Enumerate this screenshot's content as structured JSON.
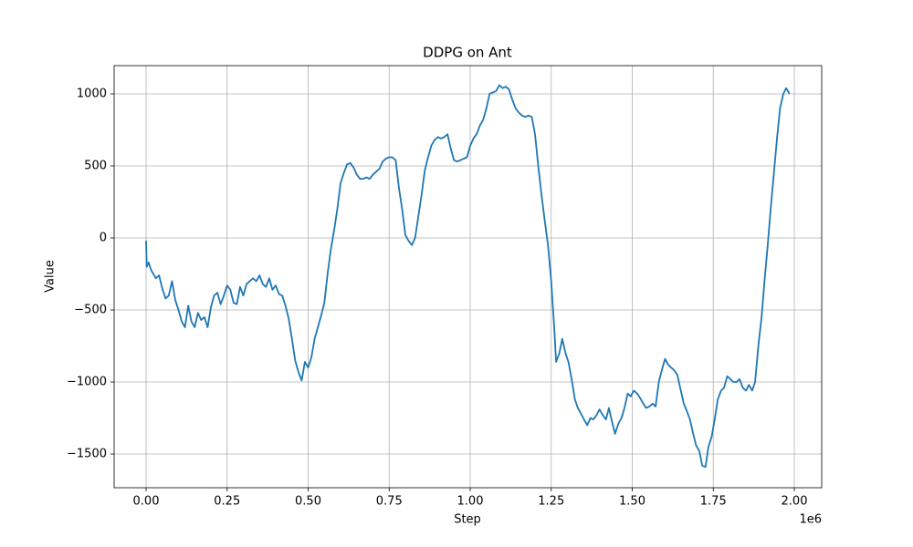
{
  "chart_data": {
    "type": "line",
    "title": "DDPG on Ant",
    "xlabel": "Step",
    "ylabel": "Value",
    "x_offset_label": "1e6",
    "xlim": [
      -0.0986,
      2.0845
    ],
    "ylim": [
      -1734,
      1196
    ],
    "grid": true,
    "xticks": [
      {
        "value": 0,
        "label": "0.00"
      },
      {
        "value": 0.25,
        "label": "0.25"
      },
      {
        "value": 0.5,
        "label": "0.50"
      },
      {
        "value": 0.75,
        "label": "0.75"
      },
      {
        "value": 1,
        "label": "1.00"
      },
      {
        "value": 1.25,
        "label": "1.25"
      },
      {
        "value": 1.5,
        "label": "1.50"
      },
      {
        "value": 1.75,
        "label": "1.75"
      },
      {
        "value": 2,
        "label": "2.00"
      }
    ],
    "yticks": [
      {
        "value": -1500,
        "label": "−1500"
      },
      {
        "value": -1000,
        "label": "−1000"
      },
      {
        "value": -500,
        "label": "−500"
      },
      0,
      500,
      1000
    ],
    "x": [
      0,
      0.002,
      0.008,
      0.015,
      0.02,
      0.03,
      0.04,
      0.05,
      0.06,
      0.07,
      0.08,
      0.09,
      0.1,
      0.11,
      0.12,
      0.13,
      0.14,
      0.15,
      0.16,
      0.17,
      0.18,
      0.19,
      0.2,
      0.21,
      0.22,
      0.23,
      0.24,
      0.25,
      0.26,
      0.27,
      0.28,
      0.29,
      0.3,
      0.31,
      0.32,
      0.33,
      0.34,
      0.35,
      0.36,
      0.37,
      0.38,
      0.39,
      0.4,
      0.41,
      0.42,
      0.43,
      0.44,
      0.45,
      0.46,
      0.47,
      0.48,
      0.49,
      0.5,
      0.51,
      0.52,
      0.53,
      0.54,
      0.55,
      0.56,
      0.57,
      0.58,
      0.59,
      0.6,
      0.61,
      0.62,
      0.63,
      0.64,
      0.65,
      0.66,
      0.67,
      0.68,
      0.69,
      0.7,
      0.71,
      0.72,
      0.73,
      0.74,
      0.75,
      0.76,
      0.77,
      0.78,
      0.79,
      0.8,
      0.81,
      0.82,
      0.83,
      0.84,
      0.85,
      0.86,
      0.87,
      0.88,
      0.89,
      0.9,
      0.91,
      0.92,
      0.93,
      0.94,
      0.95,
      0.96,
      0.97,
      0.98,
      0.99,
      1.0,
      1.01,
      1.02,
      1.03,
      1.04,
      1.05,
      1.06,
      1.07,
      1.08,
      1.09,
      1.1,
      1.11,
      1.12,
      1.13,
      1.14,
      1.15,
      1.16,
      1.17,
      1.18,
      1.19,
      1.2,
      1.21,
      1.22,
      1.23,
      1.24,
      1.25,
      1.26,
      1.265,
      1.275,
      1.284,
      1.294,
      1.303,
      1.313,
      1.323,
      1.332,
      1.342,
      1.351,
      1.361,
      1.371,
      1.38,
      1.39,
      1.399,
      1.409,
      1.419,
      1.428,
      1.438,
      1.447,
      1.457,
      1.467,
      1.476,
      1.486,
      1.495,
      1.505,
      1.515,
      1.524,
      1.534,
      1.543,
      1.553,
      1.563,
      1.572,
      1.582,
      1.591,
      1.601,
      1.611,
      1.62,
      1.63,
      1.639,
      1.649,
      1.659,
      1.668,
      1.678,
      1.687,
      1.697,
      1.707,
      1.716,
      1.726,
      1.735,
      1.745,
      1.755,
      1.764,
      1.774,
      1.783,
      1.793,
      1.803,
      1.812,
      1.822,
      1.831,
      1.841,
      1.851,
      1.86,
      1.87,
      1.879,
      1.889,
      1.899,
      1.908,
      1.918,
      1.927,
      1.937,
      1.947,
      1.956,
      1.966,
      1.975,
      1.985
    ],
    "series": [
      {
        "name": "DDPG on Ant",
        "color": "#1f77b4",
        "values": [
          -20,
          -200,
          -170,
          -220,
          -240,
          -280,
          -260,
          -350,
          -420,
          -400,
          -300,
          -430,
          -500,
          -580,
          -620,
          -470,
          -580,
          -620,
          -520,
          -570,
          -550,
          -620,
          -480,
          -400,
          -380,
          -460,
          -400,
          -330,
          -360,
          -450,
          -460,
          -340,
          -400,
          -320,
          -300,
          -280,
          -300,
          -260,
          -320,
          -340,
          -280,
          -360,
          -330,
          -390,
          -400,
          -470,
          -560,
          -700,
          -850,
          -930,
          -990,
          -860,
          -900,
          -830,
          -700,
          -620,
          -540,
          -450,
          -250,
          -80,
          50,
          200,
          380,
          450,
          510,
          520,
          490,
          440,
          410,
          410,
          420,
          410,
          440,
          460,
          480,
          530,
          550,
          560,
          560,
          540,
          350,
          200,
          20,
          -20,
          -50,
          0,
          150,
          300,
          470,
          560,
          640,
          680,
          700,
          690,
          700,
          720,
          620,
          540,
          530,
          540,
          550,
          560,
          640,
          690,
          720,
          780,
          820,
          900,
          1000,
          1010,
          1020,
          1060,
          1040,
          1050,
          1030,
          960,
          900,
          870,
          850,
          840,
          850,
          840,
          720,
          500,
          300,
          120,
          -50,
          -300,
          -650,
          -860,
          -800,
          -700,
          -800,
          -860,
          -980,
          -1120,
          -1180,
          -1220,
          -1260,
          -1300,
          -1250,
          -1260,
          -1230,
          -1190,
          -1230,
          -1260,
          -1180,
          -1280,
          -1360,
          -1290,
          -1250,
          -1180,
          -1080,
          -1100,
          -1060,
          -1080,
          -1110,
          -1150,
          -1180,
          -1170,
          -1150,
          -1170,
          -1000,
          -920,
          -840,
          -880,
          -900,
          -920,
          -950,
          -1050,
          -1150,
          -1200,
          -1260,
          -1350,
          -1440,
          -1480,
          -1580,
          -1590,
          -1450,
          -1380,
          -1250,
          -1120,
          -1060,
          -1040,
          -960,
          -980,
          -1000,
          -1000,
          -980,
          -1040,
          -1060,
          -1020,
          -1060,
          -1000,
          -750,
          -550,
          -300,
          -50,
          200,
          450,
          700,
          900,
          1000,
          1040,
          1000
        ]
      }
    ]
  }
}
